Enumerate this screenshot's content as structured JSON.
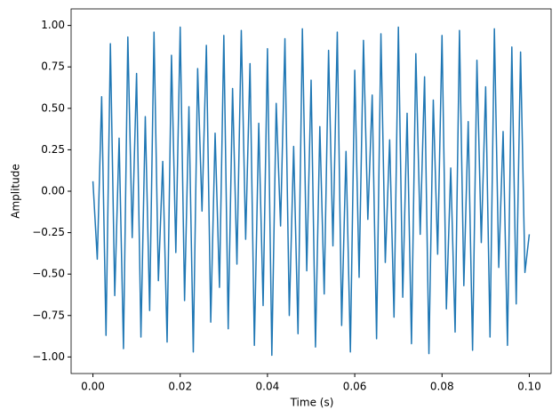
{
  "chart_data": {
    "type": "line",
    "xlabel": "Time (s)",
    "ylabel": "Amplitude",
    "x": [
      0,
      0.001,
      0.002,
      0.003,
      0.004,
      0.005,
      0.006,
      0.007,
      0.008,
      0.009,
      0.01,
      0.011,
      0.012,
      0.013,
      0.014,
      0.015,
      0.016,
      0.017,
      0.018,
      0.019,
      0.02,
      0.021,
      0.022,
      0.023,
      0.024,
      0.025,
      0.026,
      0.027,
      0.028,
      0.029,
      0.03,
      0.031,
      0.032,
      0.033,
      0.034,
      0.035,
      0.036,
      0.037,
      0.038,
      0.039,
      0.04,
      0.041,
      0.042,
      0.043,
      0.044,
      0.045,
      0.046,
      0.047,
      0.048,
      0.049,
      0.05,
      0.051,
      0.052,
      0.053,
      0.054,
      0.055,
      0.056,
      0.057,
      0.058,
      0.059,
      0.06,
      0.061,
      0.062,
      0.063,
      0.064,
      0.065,
      0.066,
      0.067,
      0.068,
      0.069,
      0.07,
      0.071,
      0.072,
      0.073,
      0.074,
      0.075,
      0.076,
      0.077,
      0.078,
      0.079,
      0.08,
      0.081,
      0.082,
      0.083,
      0.084,
      0.085,
      0.086,
      0.087,
      0.088,
      0.089,
      0.09,
      0.091,
      0.092,
      0.093,
      0.094,
      0.095,
      0.096,
      0.097,
      0.098,
      0.099,
      0.1
    ],
    "series": [
      {
        "color": "#1f77b4",
        "values": [
          0.06,
          -0.41,
          0.57,
          -0.87,
          0.89,
          -0.63,
          0.32,
          -0.95,
          0.93,
          -0.28,
          0.71,
          -0.88,
          0.45,
          -0.72,
          0.96,
          -0.54,
          0.18,
          -0.91,
          0.82,
          -0.37,
          0.99,
          -0.66,
          0.51,
          -0.97,
          0.74,
          -0.12,
          0.88,
          -0.79,
          0.35,
          -0.58,
          0.94,
          -0.83,
          0.62,
          -0.44,
          0.97,
          -0.29,
          0.77,
          -0.93,
          0.41,
          -0.69,
          0.86,
          -0.99,
          0.53,
          -0.21,
          0.92,
          -0.75,
          0.27,
          -0.86,
          0.98,
          -0.48,
          0.67,
          -0.94,
          0.39,
          -0.62,
          0.85,
          -0.33,
          0.96,
          -0.81,
          0.24,
          -0.97,
          0.73,
          -0.52,
          0.91,
          -0.17,
          0.58,
          -0.89,
          0.95,
          -0.43,
          0.31,
          -0.76,
          0.99,
          -0.64,
          0.47,
          -0.92,
          0.83,
          -0.26,
          0.69,
          -0.98,
          0.55,
          -0.38,
          0.94,
          -0.71,
          0.14,
          -0.85,
          0.97,
          -0.57,
          0.42,
          -0.96,
          0.79,
          -0.31,
          0.63,
          -0.88,
          0.98,
          -0.46,
          0.36,
          -0.93,
          0.87,
          -0.68,
          0.84,
          -0.49,
          -0.26
        ]
      }
    ],
    "xlim": [
      -0.005,
      0.105
    ],
    "ylim": [
      -1.1,
      1.1
    ],
    "xticks": [
      {
        "value": 0,
        "label": "0.00"
      },
      {
        "value": 0.02,
        "label": "0.02"
      },
      {
        "value": 0.04,
        "label": "0.04"
      },
      {
        "value": 0.06,
        "label": "0.06"
      },
      {
        "value": 0.08,
        "label": "0.08"
      },
      {
        "value": 0.1,
        "label": "0.10"
      }
    ],
    "yticks": [
      {
        "value": -1,
        "label": "−1.00"
      },
      {
        "value": -0.75,
        "label": "−0.75"
      },
      {
        "value": -0.5,
        "label": "−0.50"
      },
      {
        "value": -0.25,
        "label": "−0.25"
      },
      {
        "value": 0,
        "label": "0.00"
      },
      {
        "value": 0.25,
        "label": "0.25"
      },
      {
        "value": 0.5,
        "label": "0.50"
      },
      {
        "value": 0.75,
        "label": "0.75"
      },
      {
        "value": 1,
        "label": "1.00"
      }
    ]
  }
}
